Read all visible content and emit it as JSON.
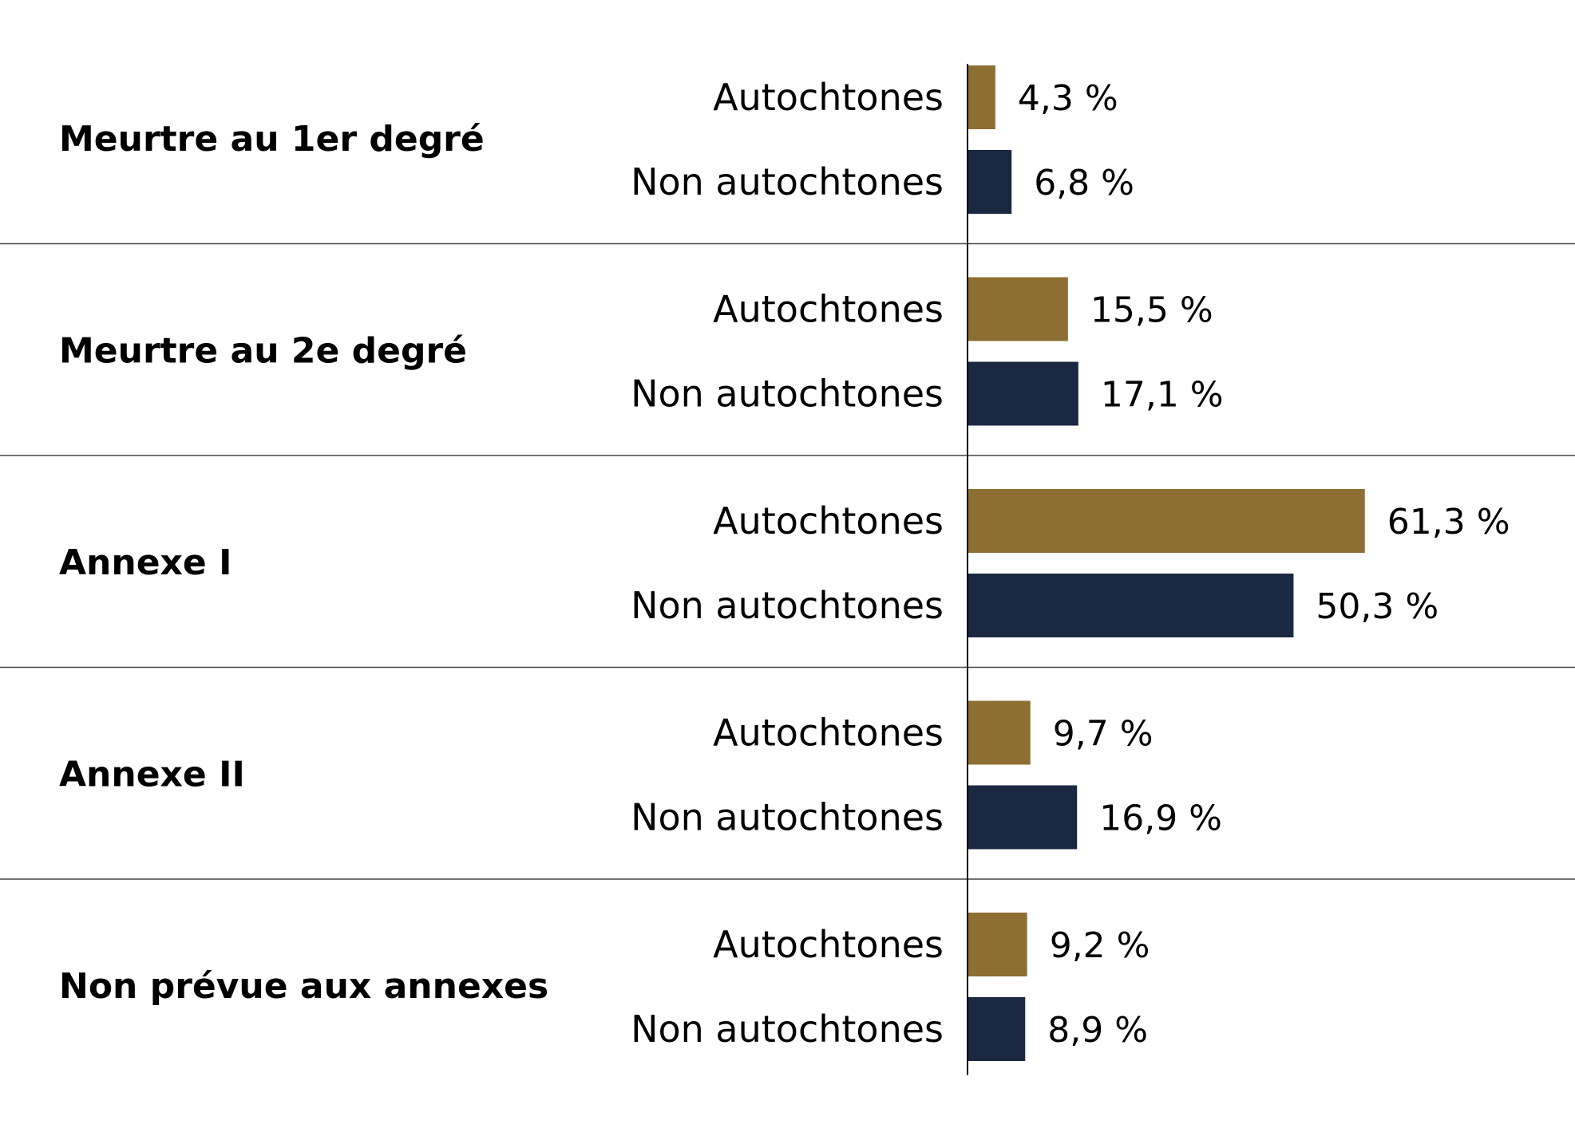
{
  "chart_data": {
    "type": "bar",
    "orientation": "horizontal",
    "grid": false,
    "legend": "none",
    "categories": [
      "Meurtre au 1er degré",
      "Meurtre au 2e degré",
      "Annexe I",
      "Annexe II",
      "Non prévue aux annexes"
    ],
    "series": [
      {
        "name": "Autochtones",
        "color": "#8d6f33",
        "values": [
          4.3,
          15.5,
          61.3,
          9.7,
          9.2
        ],
        "labels": [
          "4,3 %",
          "15,5 %",
          "61,3 %",
          "9,7 %",
          "9,2 %"
        ]
      },
      {
        "name": "Non autochtones",
        "color": "#1b2842",
        "values": [
          6.8,
          17.1,
          50.3,
          16.9,
          8.9
        ],
        "labels": [
          "6,8 %",
          "17,1 %",
          "50,3 %",
          "16,9 %",
          "8,9 %"
        ]
      }
    ],
    "xlim": [
      0,
      100
    ],
    "unit": "%"
  }
}
